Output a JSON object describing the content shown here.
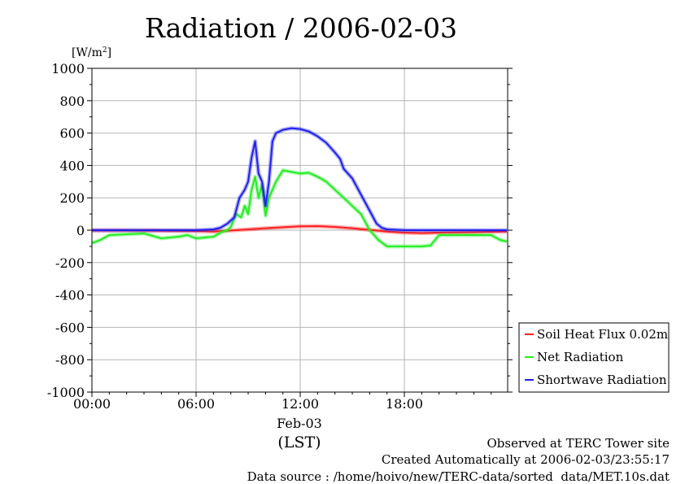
{
  "colors": {
    "soil": "#ff2020",
    "net": "#22ee22",
    "shortwave": "#2020ee",
    "grid": "#b4b4b4"
  },
  "chart_data": {
    "type": "line",
    "title": "Radiation / 2006-02-03",
    "ylabel": "[W/m",
    "ylabel_sup": "2",
    "ylabel_close": "]",
    "ylim": [
      -1000,
      1000
    ],
    "yticks": [
      -1000,
      -800,
      -600,
      -400,
      -200,
      0,
      200,
      400,
      600,
      800,
      1000
    ],
    "ytick_labels": [
      "-1000",
      "-800",
      "-600",
      "-400",
      "-200",
      "0",
      "200",
      "400",
      "600",
      "800",
      "1000"
    ],
    "xlim": [
      0,
      23.95
    ],
    "xticks": [
      0,
      6,
      12,
      18
    ],
    "xtick_labels": [
      "00:00",
      "06:00",
      "12:00",
      "18:00"
    ],
    "xdate_label": "Feb-03",
    "xlabel": "(LST)",
    "grid": true,
    "legend_position": "right",
    "series": [
      {
        "name": "Soil Heat Flux 0.02m",
        "color_key": "soil",
        "points": [
          [
            0,
            -1
          ],
          [
            3,
            -2
          ],
          [
            6,
            -5
          ],
          [
            7,
            -8
          ],
          [
            7.5,
            -5
          ],
          [
            8,
            -2
          ],
          [
            9,
            5
          ],
          [
            10,
            12
          ],
          [
            11,
            18
          ],
          [
            12,
            24
          ],
          [
            13,
            25
          ],
          [
            14,
            20
          ],
          [
            15,
            12
          ],
          [
            16,
            2
          ],
          [
            17,
            -8
          ],
          [
            18,
            -15
          ],
          [
            19,
            -18
          ],
          [
            20,
            -15
          ],
          [
            22,
            -12
          ],
          [
            23.9,
            -8
          ]
        ]
      },
      {
        "name": "Net Radiation",
        "color_key": "net",
        "points": [
          [
            0,
            -80
          ],
          [
            0.5,
            -60
          ],
          [
            1,
            -30
          ],
          [
            2,
            -25
          ],
          [
            3,
            -20
          ],
          [
            4,
            -50
          ],
          [
            5,
            -40
          ],
          [
            5.5,
            -30
          ],
          [
            6,
            -50
          ],
          [
            7,
            -40
          ],
          [
            7.5,
            -10
          ],
          [
            7.8,
            0
          ],
          [
            8,
            20
          ],
          [
            8.3,
            100
          ],
          [
            8.6,
            80
          ],
          [
            8.8,
            150
          ],
          [
            9,
            100
          ],
          [
            9.2,
            250
          ],
          [
            9.4,
            330
          ],
          [
            9.6,
            200
          ],
          [
            9.8,
            280
          ],
          [
            10,
            90
          ],
          [
            10.2,
            200
          ],
          [
            10.4,
            250
          ],
          [
            10.6,
            300
          ],
          [
            11,
            370
          ],
          [
            11.5,
            360
          ],
          [
            12,
            350
          ],
          [
            12.5,
            355
          ],
          [
            13,
            330
          ],
          [
            13.5,
            300
          ],
          [
            14,
            250
          ],
          [
            14.5,
            200
          ],
          [
            15,
            150
          ],
          [
            15.5,
            100
          ],
          [
            16,
            0
          ],
          [
            16.5,
            -60
          ],
          [
            17,
            -100
          ],
          [
            17.5,
            -100
          ],
          [
            18,
            -100
          ],
          [
            19,
            -100
          ],
          [
            19.5,
            -95
          ],
          [
            20,
            -30
          ],
          [
            21,
            -30
          ],
          [
            22,
            -30
          ],
          [
            23,
            -30
          ],
          [
            23.5,
            -60
          ],
          [
            23.9,
            -70
          ]
        ]
      },
      {
        "name": "Shortwave Radiation",
        "color_key": "shortwave",
        "points": [
          [
            0,
            0
          ],
          [
            6,
            0
          ],
          [
            7,
            5
          ],
          [
            7.4,
            15
          ],
          [
            7.8,
            40
          ],
          [
            8.2,
            80
          ],
          [
            8.5,
            200
          ],
          [
            8.8,
            250
          ],
          [
            9,
            300
          ],
          [
            9.2,
            450
          ],
          [
            9.4,
            550
          ],
          [
            9.6,
            350
          ],
          [
            9.8,
            300
          ],
          [
            10,
            150
          ],
          [
            10.2,
            300
          ],
          [
            10.4,
            550
          ],
          [
            10.6,
            600
          ],
          [
            11,
            620
          ],
          [
            11.5,
            630
          ],
          [
            12,
            625
          ],
          [
            12.5,
            610
          ],
          [
            13,
            580
          ],
          [
            13.5,
            540
          ],
          [
            14,
            480
          ],
          [
            14.3,
            440
          ],
          [
            14.5,
            380
          ],
          [
            15,
            320
          ],
          [
            15.5,
            220
          ],
          [
            16,
            120
          ],
          [
            16.4,
            40
          ],
          [
            16.7,
            15
          ],
          [
            17,
            5
          ],
          [
            18,
            0
          ],
          [
            20,
            0
          ],
          [
            22,
            0
          ],
          [
            23.9,
            0
          ]
        ]
      }
    ]
  },
  "legend": {
    "items": [
      {
        "label": "Soil Heat Flux 0.02m",
        "color_key": "soil"
      },
      {
        "label": "Net Radiation",
        "color_key": "net"
      },
      {
        "label": "Shortwave Radiation",
        "color_key": "shortwave"
      }
    ]
  },
  "footer": {
    "line1": "Observed at TERC Tower site",
    "line2": "Created Automatically at 2006-02-03/23:55:17",
    "line3": "Data source : /home/hoivo/new/TERC-data/sorted  data/MET.10s.dat"
  }
}
